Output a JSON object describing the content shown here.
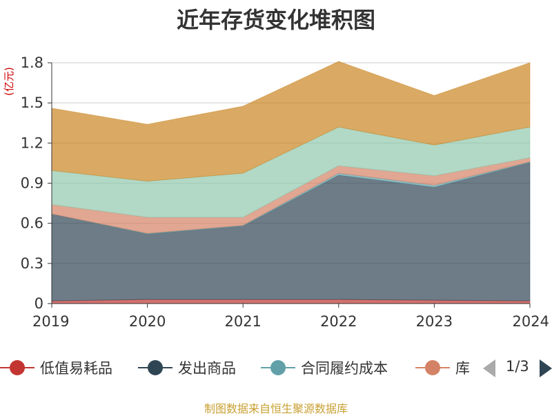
{
  "chart_data": {
    "type": "area",
    "stacked": true,
    "title": "近年存货变化堆积图",
    "unit_label": "(亿元)",
    "x": [
      "2019",
      "2020",
      "2021",
      "2022",
      "2023",
      "2024"
    ],
    "y_ticks": [
      "0",
      "0.3",
      "0.6",
      "0.9",
      "1.2",
      "1.5",
      "1.8"
    ],
    "ylim": [
      0,
      1.8
    ],
    "grid": true,
    "legend_position": "bottom",
    "series": [
      {
        "name": "低值易耗品",
        "color": "#c23531",
        "values": [
          0.02,
          0.03,
          0.03,
          0.03,
          0.025,
          0.02
        ]
      },
      {
        "name": "发出商品",
        "color": "#2f4554",
        "values": [
          0.65,
          0.49,
          0.55,
          0.93,
          0.845,
          1.035
        ]
      },
      {
        "name": "合同履约成本",
        "color": "#61a0a8",
        "values": [
          0.0,
          0.005,
          0.005,
          0.015,
          0.015,
          0.005
        ]
      },
      {
        "name": "库存商品",
        "color": "#d48265",
        "values": [
          0.07,
          0.12,
          0.06,
          0.055,
          0.07,
          0.03
        ]
      },
      {
        "name": "",
        "color": "#91c7ae",
        "values": [
          0.255,
          0.27,
          0.33,
          0.29,
          0.23,
          0.23
        ]
      },
      {
        "name": "",
        "color": "#ca8622",
        "values": [
          0.465,
          0.425,
          0.5,
          0.49,
          0.37,
          0.48
        ]
      }
    ]
  },
  "legend": {
    "items": [
      {
        "label": "低值易耗品",
        "color": "#c23531"
      },
      {
        "label": "发出商品",
        "color": "#2f4554"
      },
      {
        "label": "合同履约成本",
        "color": "#61a0a8"
      },
      {
        "label": "库",
        "color": "#d48265"
      }
    ],
    "page_indicator": "1/3"
  },
  "source_text": "制图数据来自恒生聚源数据库"
}
